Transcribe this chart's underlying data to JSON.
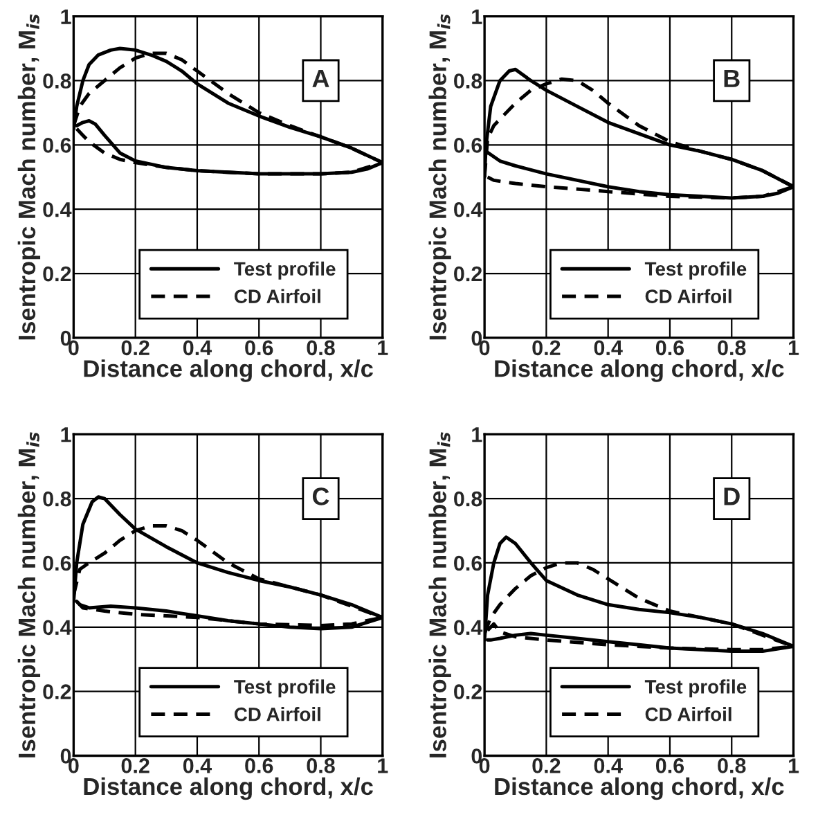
{
  "chart_data": [
    {
      "type": "line",
      "xlabel": "Distance along chord, x/c",
      "ylabel": "Isentropic Mach number, M$_{is}$",
      "annotations": [
        "A"
      ],
      "xlim": [
        0,
        1
      ],
      "ylim": [
        0,
        1
      ],
      "xticks": [
        0,
        0.2,
        0.4,
        0.6,
        0.8,
        1
      ],
      "yticks": [
        0,
        0.2,
        0.4,
        0.6,
        0.8,
        1
      ],
      "grid": true,
      "legend": "bottom",
      "series": [
        {
          "name": "Test profile",
          "color": "#000000",
          "line_style": "solid",
          "x": [
            0,
            0.01,
            0.03,
            0.05,
            0.08,
            0.12,
            0.15,
            0.2,
            0.25,
            0.3,
            0.35,
            0.4,
            0.5,
            0.6,
            0.7,
            0.8,
            0.9,
            1
          ],
          "values": [
            0.65,
            0.72,
            0.8,
            0.85,
            0.88,
            0.895,
            0.9,
            0.895,
            0.88,
            0.86,
            0.83,
            0.79,
            0.73,
            0.69,
            0.655,
            0.625,
            0.59,
            0.545
          ]
        },
        {
          "color": "#000000",
          "line_style": "solid",
          "x": [
            0.01,
            0.03,
            0.05,
            0.07,
            0.1,
            0.15,
            0.2,
            0.3,
            0.4,
            0.5,
            0.6,
            0.7,
            0.8,
            0.9,
            0.95,
            1
          ],
          "values": [
            0.66,
            0.67,
            0.675,
            0.665,
            0.63,
            0.575,
            0.55,
            0.53,
            0.52,
            0.515,
            0.51,
            0.51,
            0.51,
            0.515,
            0.525,
            0.545
          ]
        },
        {
          "name": "CD Airfoil",
          "color": "#000000",
          "line_style": "dashed",
          "x": [
            0,
            0.02,
            0.05,
            0.1,
            0.15,
            0.2,
            0.25,
            0.3,
            0.35,
            0.4,
            0.5,
            0.6,
            0.7,
            0.8,
            0.9,
            1
          ],
          "values": [
            0.66,
            0.72,
            0.76,
            0.8,
            0.84,
            0.87,
            0.885,
            0.885,
            0.865,
            0.83,
            0.76,
            0.7,
            0.66,
            0.625,
            0.59,
            0.545
          ]
        },
        {
          "color": "#000000",
          "line_style": "dashed",
          "x": [
            0.01,
            0.03,
            0.05,
            0.1,
            0.15,
            0.2,
            0.3,
            0.4,
            0.6,
            0.8,
            0.9,
            1
          ],
          "values": [
            0.65,
            0.63,
            0.61,
            0.575,
            0.555,
            0.545,
            0.53,
            0.52,
            0.51,
            0.51,
            0.515,
            0.545
          ]
        }
      ]
    },
    {
      "type": "line",
      "xlabel": "Distance along chord, x/c",
      "ylabel": "Isentropic Mach number, M$_{is}$",
      "annotations": [
        "B"
      ],
      "xlim": [
        0,
        1
      ],
      "ylim": [
        0,
        1
      ],
      "xticks": [
        0,
        0.2,
        0.4,
        0.6,
        0.8,
        1
      ],
      "yticks": [
        0,
        0.2,
        0.4,
        0.6,
        0.8,
        1
      ],
      "grid": true,
      "legend": "bottom",
      "series": [
        {
          "name": "Test profile",
          "color": "#000000",
          "line_style": "solid",
          "x": [
            0,
            0.005,
            0.02,
            0.05,
            0.08,
            0.1,
            0.15,
            0.2,
            0.3,
            0.4,
            0.5,
            0.6,
            0.7,
            0.8,
            0.9,
            1
          ],
          "values": [
            0.5,
            0.6,
            0.72,
            0.8,
            0.83,
            0.835,
            0.8,
            0.77,
            0.72,
            0.67,
            0.635,
            0.6,
            0.58,
            0.555,
            0.52,
            0.47
          ]
        },
        {
          "color": "#000000",
          "line_style": "solid",
          "x": [
            0.005,
            0.02,
            0.05,
            0.1,
            0.2,
            0.3,
            0.4,
            0.5,
            0.6,
            0.7,
            0.8,
            0.9,
            0.95,
            1
          ],
          "values": [
            0.58,
            0.57,
            0.55,
            0.535,
            0.51,
            0.49,
            0.47,
            0.455,
            0.445,
            0.44,
            0.435,
            0.44,
            0.45,
            0.47
          ]
        },
        {
          "name": "CD Airfoil",
          "color": "#000000",
          "line_style": "dashed",
          "x": [
            0,
            0.01,
            0.03,
            0.07,
            0.1,
            0.15,
            0.2,
            0.25,
            0.3,
            0.35,
            0.4,
            0.5,
            0.6,
            0.7,
            0.8,
            0.9,
            1
          ],
          "values": [
            0.5,
            0.62,
            0.66,
            0.7,
            0.73,
            0.77,
            0.79,
            0.805,
            0.8,
            0.77,
            0.73,
            0.66,
            0.61,
            0.58,
            0.555,
            0.52,
            0.47
          ]
        },
        {
          "color": "#000000",
          "line_style": "dashed",
          "x": [
            0.01,
            0.03,
            0.1,
            0.2,
            0.4,
            0.6,
            0.8,
            0.9,
            1
          ],
          "values": [
            0.5,
            0.49,
            0.48,
            0.47,
            0.455,
            0.44,
            0.435,
            0.44,
            0.47
          ]
        }
      ]
    },
    {
      "type": "line",
      "xlabel": "Distance along chord, x/c",
      "ylabel": "Isentropic Mach number, M$_{is}$",
      "annotations": [
        "C"
      ],
      "xlim": [
        0,
        1
      ],
      "ylim": [
        0,
        1
      ],
      "xticks": [
        0,
        0.2,
        0.4,
        0.6,
        0.8,
        1
      ],
      "yticks": [
        0,
        0.2,
        0.4,
        0.6,
        0.8,
        1
      ],
      "grid": true,
      "legend": "bottom",
      "series": [
        {
          "name": "Test profile",
          "color": "#000000",
          "line_style": "solid",
          "x": [
            0,
            0.01,
            0.03,
            0.06,
            0.08,
            0.1,
            0.15,
            0.2,
            0.3,
            0.4,
            0.5,
            0.6,
            0.7,
            0.8,
            0.9,
            1
          ],
          "values": [
            0.48,
            0.6,
            0.72,
            0.79,
            0.805,
            0.8,
            0.75,
            0.705,
            0.65,
            0.6,
            0.57,
            0.545,
            0.525,
            0.5,
            0.47,
            0.43
          ]
        },
        {
          "color": "#000000",
          "line_style": "solid",
          "x": [
            0.01,
            0.02,
            0.05,
            0.12,
            0.2,
            0.3,
            0.4,
            0.5,
            0.6,
            0.7,
            0.8,
            0.9,
            1
          ],
          "values": [
            0.48,
            0.47,
            0.46,
            0.465,
            0.46,
            0.45,
            0.435,
            0.42,
            0.41,
            0.4,
            0.395,
            0.4,
            0.43
          ]
        },
        {
          "name": "CD Airfoil",
          "color": "#000000",
          "line_style": "dashed",
          "x": [
            0,
            0.02,
            0.05,
            0.1,
            0.15,
            0.2,
            0.25,
            0.3,
            0.35,
            0.4,
            0.5,
            0.6,
            0.7,
            0.8,
            0.9,
            1
          ],
          "values": [
            0.5,
            0.58,
            0.6,
            0.63,
            0.67,
            0.7,
            0.715,
            0.715,
            0.7,
            0.67,
            0.6,
            0.55,
            0.525,
            0.5,
            0.465,
            0.43
          ]
        },
        {
          "color": "#000000",
          "line_style": "dashed",
          "x": [
            0.01,
            0.03,
            0.1,
            0.2,
            0.4,
            0.6,
            0.8,
            0.9,
            1
          ],
          "values": [
            0.48,
            0.46,
            0.45,
            0.44,
            0.43,
            0.41,
            0.405,
            0.41,
            0.43
          ]
        }
      ]
    },
    {
      "type": "line",
      "xlabel": "Distance along chord, x/c",
      "ylabel": "Isentropic Mach number, M$_{is}$",
      "annotations": [
        "D"
      ],
      "xlim": [
        0,
        1
      ],
      "ylim": [
        0,
        1
      ],
      "xticks": [
        0,
        0.2,
        0.4,
        0.6,
        0.8,
        1
      ],
      "yticks": [
        0,
        0.2,
        0.4,
        0.6,
        0.8,
        1
      ],
      "grid": true,
      "legend": "bottom",
      "series": [
        {
          "name": "Test profile",
          "color": "#000000",
          "line_style": "solid",
          "x": [
            0,
            0.01,
            0.03,
            0.05,
            0.07,
            0.1,
            0.15,
            0.2,
            0.3,
            0.4,
            0.5,
            0.6,
            0.7,
            0.8,
            0.9,
            1
          ],
          "values": [
            0.36,
            0.5,
            0.6,
            0.66,
            0.68,
            0.66,
            0.6,
            0.545,
            0.5,
            0.47,
            0.455,
            0.445,
            0.43,
            0.41,
            0.38,
            0.34
          ]
        },
        {
          "color": "#000000",
          "line_style": "solid",
          "x": [
            0.01,
            0.02,
            0.05,
            0.1,
            0.15,
            0.2,
            0.3,
            0.4,
            0.5,
            0.6,
            0.7,
            0.8,
            0.9,
            1
          ],
          "values": [
            0.36,
            0.36,
            0.365,
            0.375,
            0.38,
            0.375,
            0.365,
            0.355,
            0.345,
            0.335,
            0.33,
            0.325,
            0.325,
            0.34
          ]
        },
        {
          "name": "CD Airfoil",
          "color": "#000000",
          "line_style": "dashed",
          "x": [
            0,
            0.02,
            0.05,
            0.1,
            0.15,
            0.2,
            0.25,
            0.3,
            0.35,
            0.4,
            0.5,
            0.6,
            0.7,
            0.8,
            0.9,
            1
          ],
          "values": [
            0.38,
            0.43,
            0.47,
            0.52,
            0.56,
            0.585,
            0.6,
            0.6,
            0.58,
            0.55,
            0.49,
            0.45,
            0.43,
            0.41,
            0.375,
            0.34
          ]
        },
        {
          "color": "#000000",
          "line_style": "dashed",
          "x": [
            0.01,
            0.03,
            0.05,
            0.1,
            0.2,
            0.4,
            0.6,
            0.8,
            0.9,
            1
          ],
          "values": [
            0.39,
            0.41,
            0.385,
            0.37,
            0.36,
            0.345,
            0.335,
            0.33,
            0.33,
            0.34
          ]
        }
      ]
    }
  ]
}
